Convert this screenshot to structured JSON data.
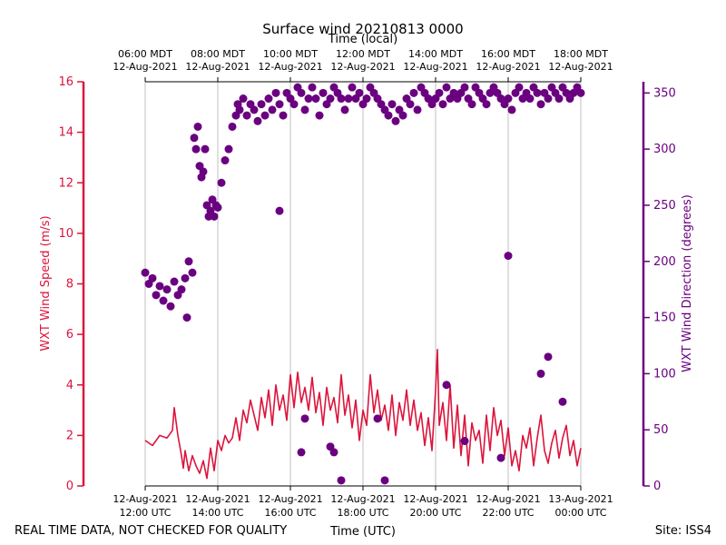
{
  "chart_data": {
    "type": "scatter",
    "title": "Surface wind 20210813 0000",
    "top_xlabel": "Time (local)",
    "xlabel": "Time (UTC)",
    "ylabel_left": "WXT Wind Speed (m/s)",
    "ylabel_right": "WXT Wind Direction (degrees)",
    "x_unit": "hours since 12-Aug-2021 12:00 UTC",
    "xlim": [
      0,
      12
    ],
    "ylim_left": [
      0,
      16
    ],
    "ylim_right": [
      0,
      360
    ],
    "left_ticks": [
      "0",
      "2",
      "4",
      "6",
      "8",
      "10",
      "12",
      "14",
      "16"
    ],
    "right_ticks": [
      "0",
      "50",
      "100",
      "150",
      "200",
      "250",
      "300",
      "350"
    ],
    "bottom_ticks": [
      {
        "x": 0,
        "line1": "12-Aug-2021",
        "line2": "12:00 UTC"
      },
      {
        "x": 2,
        "line1": "12-Aug-2021",
        "line2": "14:00 UTC"
      },
      {
        "x": 4,
        "line1": "12-Aug-2021",
        "line2": "16:00 UTC"
      },
      {
        "x": 6,
        "line1": "12-Aug-2021",
        "line2": "18:00 UTC"
      },
      {
        "x": 8,
        "line1": "12-Aug-2021",
        "line2": "20:00 UTC"
      },
      {
        "x": 10,
        "line1": "12-Aug-2021",
        "line2": "22:00 UTC"
      },
      {
        "x": 12,
        "line1": "13-Aug-2021",
        "line2": "00:00 UTC"
      }
    ],
    "top_ticks": [
      {
        "x": 0,
        "line1": "06:00 MDT",
        "line2": "12-Aug-2021"
      },
      {
        "x": 2,
        "line1": "08:00 MDT",
        "line2": "12-Aug-2021"
      },
      {
        "x": 4,
        "line1": "10:00 MDT",
        "line2": "12-Aug-2021"
      },
      {
        "x": 6,
        "line1": "12:00 MDT",
        "line2": "12-Aug-2021"
      },
      {
        "x": 8,
        "line1": "14:00 MDT",
        "line2": "12-Aug-2021"
      },
      {
        "x": 10,
        "line1": "16:00 MDT",
        "line2": "12-Aug-2021"
      },
      {
        "x": 12,
        "line1": "18:00 MDT",
        "line2": "12-Aug-2021"
      }
    ],
    "series": [
      {
        "name": "WXT Wind Speed (m/s)",
        "axis": "left",
        "style": "line",
        "color": "#dc143c",
        "x": [
          0,
          0.2,
          0.4,
          0.6,
          0.75,
          0.8,
          0.9,
          1.0,
          1.05,
          1.1,
          1.2,
          1.3,
          1.4,
          1.5,
          1.6,
          1.7,
          1.8,
          1.9,
          2.0,
          2.1,
          2.2,
          2.3,
          2.4,
          2.5,
          2.6,
          2.7,
          2.8,
          2.9,
          3.0,
          3.1,
          3.2,
          3.3,
          3.4,
          3.5,
          3.6,
          3.7,
          3.8,
          3.9,
          4.0,
          4.1,
          4.2,
          4.3,
          4.4,
          4.5,
          4.6,
          4.7,
          4.8,
          4.9,
          5.0,
          5.1,
          5.2,
          5.3,
          5.4,
          5.5,
          5.6,
          5.7,
          5.8,
          5.9,
          6.0,
          6.1,
          6.2,
          6.3,
          6.4,
          6.5,
          6.6,
          6.7,
          6.8,
          6.9,
          7.0,
          7.1,
          7.2,
          7.3,
          7.4,
          7.5,
          7.6,
          7.7,
          7.8,
          7.9,
          8.0,
          8.05,
          8.1,
          8.2,
          8.3,
          8.4,
          8.5,
          8.6,
          8.7,
          8.8,
          8.9,
          9.0,
          9.1,
          9.2,
          9.3,
          9.4,
          9.5,
          9.6,
          9.7,
          9.8,
          9.9,
          10.0,
          10.1,
          10.2,
          10.3,
          10.4,
          10.5,
          10.6,
          10.7,
          10.8,
          10.9,
          11.0,
          11.1,
          11.2,
          11.3,
          11.4,
          11.5,
          11.6,
          11.7,
          11.8,
          11.9,
          12.0
        ],
        "y": [
          1.8,
          1.6,
          2.0,
          1.9,
          2.2,
          3.1,
          2.0,
          1.2,
          0.7,
          1.4,
          0.6,
          1.2,
          0.8,
          0.5,
          1.0,
          0.3,
          1.5,
          0.6,
          1.8,
          1.4,
          2.0,
          1.7,
          1.9,
          2.7,
          1.8,
          3.0,
          2.5,
          3.4,
          2.8,
          2.2,
          3.5,
          2.7,
          3.8,
          2.4,
          4.0,
          3.0,
          3.6,
          2.6,
          4.4,
          3.1,
          4.5,
          3.3,
          3.9,
          3.0,
          4.3,
          2.9,
          3.7,
          2.4,
          3.9,
          3.0,
          3.5,
          2.5,
          4.4,
          2.8,
          3.6,
          2.3,
          3.4,
          1.8,
          3.0,
          2.4,
          4.4,
          2.9,
          3.8,
          2.6,
          3.2,
          2.2,
          3.6,
          2.0,
          3.3,
          2.6,
          3.8,
          2.4,
          3.4,
          2.2,
          2.9,
          1.6,
          2.7,
          1.4,
          3.8,
          5.4,
          2.4,
          3.3,
          1.8,
          4.0,
          1.5,
          3.2,
          1.2,
          2.8,
          0.8,
          2.5,
          1.8,
          2.2,
          0.9,
          2.8,
          1.4,
          3.1,
          2.0,
          2.6,
          1.2,
          2.3,
          0.8,
          1.4,
          0.6,
          2.0,
          1.5,
          2.3,
          0.8,
          1.9,
          2.8,
          1.4,
          0.9,
          1.7,
          2.2,
          1.1,
          1.9,
          2.4,
          1.2,
          1.8,
          0.8,
          1.5
        ]
      },
      {
        "name": "WXT Wind Direction (degrees)",
        "axis": "right",
        "style": "markers",
        "color": "#6a0080",
        "x": [
          0,
          0.1,
          0.2,
          0.3,
          0.4,
          0.5,
          0.6,
          0.7,
          0.8,
          0.9,
          1.0,
          1.1,
          1.15,
          1.2,
          1.3,
          1.35,
          1.4,
          1.45,
          1.5,
          1.55,
          1.6,
          1.65,
          1.7,
          1.75,
          1.8,
          1.85,
          1.9,
          1.95,
          2.0,
          2.1,
          2.2,
          2.3,
          2.4,
          2.5,
          2.55,
          2.6,
          2.7,
          2.8,
          2.9,
          3.0,
          3.1,
          3.2,
          3.3,
          3.4,
          3.5,
          3.6,
          3.7,
          3.8,
          3.9,
          4.0,
          4.1,
          4.2,
          4.3,
          4.4,
          4.5,
          4.6,
          4.7,
          4.8,
          4.9,
          5.0,
          5.1,
          5.2,
          5.3,
          5.4,
          5.5,
          5.6,
          5.7,
          5.8,
          5.9,
          6.0,
          6.1,
          6.2,
          6.3,
          6.4,
          6.5,
          6.6,
          6.7,
          6.8,
          6.9,
          7.0,
          7.1,
          7.2,
          7.3,
          7.4,
          7.5,
          7.6,
          7.7,
          7.8,
          7.9,
          8.0,
          8.1,
          8.2,
          8.3,
          8.4,
          8.5,
          8.6,
          8.7,
          8.8,
          8.9,
          9.0,
          9.1,
          9.2,
          9.3,
          9.4,
          9.5,
          9.6,
          9.7,
          9.8,
          9.9,
          10.0,
          10.1,
          10.2,
          10.3,
          10.4,
          10.5,
          10.6,
          10.7,
          10.8,
          10.9,
          11.0,
          11.1,
          11.2,
          11.3,
          11.4,
          11.5,
          11.6,
          11.7,
          11.8,
          11.9,
          12.0,
          4.3,
          5.1,
          6.4,
          10.0,
          11.1,
          3.7,
          4.4,
          5.2,
          5.4,
          6.6,
          8.3,
          8.8,
          9.8,
          10.9,
          11.5
        ],
        "y": [
          190,
          180,
          185,
          170,
          178,
          165,
          175,
          160,
          182,
          170,
          175,
          185,
          150,
          200,
          190,
          310,
          300,
          320,
          285,
          275,
          280,
          300,
          250,
          240,
          245,
          255,
          240,
          250,
          248,
          270,
          290,
          300,
          320,
          330,
          340,
          335,
          345,
          330,
          340,
          335,
          325,
          340,
          330,
          345,
          335,
          350,
          340,
          330,
          350,
          345,
          340,
          355,
          350,
          335,
          345,
          355,
          345,
          330,
          350,
          340,
          345,
          355,
          350,
          345,
          335,
          345,
          355,
          345,
          350,
          340,
          345,
          355,
          350,
          345,
          340,
          335,
          330,
          340,
          325,
          335,
          330,
          345,
          340,
          350,
          335,
          355,
          350,
          345,
          340,
          345,
          350,
          340,
          355,
          345,
          350,
          345,
          350,
          355,
          345,
          340,
          355,
          350,
          345,
          340,
          350,
          355,
          350,
          345,
          340,
          345,
          335,
          350,
          355,
          345,
          350,
          345,
          355,
          350,
          340,
          350,
          345,
          355,
          350,
          345,
          355,
          350,
          345,
          350,
          355,
          350,
          30,
          35,
          60,
          205,
          115,
          245,
          60,
          30,
          5,
          5,
          90,
          40,
          25,
          100,
          75
        ]
      }
    ]
  },
  "footer": {
    "left_note": "REAL TIME DATA, NOT CHECKED FOR QUALITY",
    "site": "Site: ISS4"
  }
}
